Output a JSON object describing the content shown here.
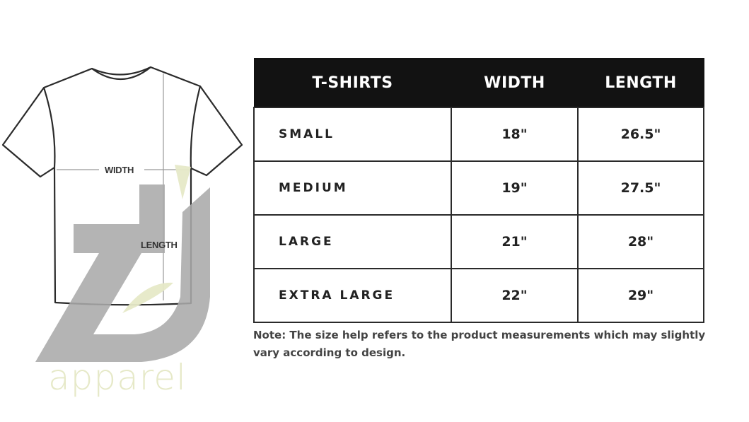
{
  "diagram": {
    "width_label": "WIDTH",
    "length_label": "LENGTH"
  },
  "logo": {
    "text": "apparel",
    "mark": "ZJ",
    "colors": {
      "mark": "#a9a9a9",
      "accent": "#e6e9c8"
    }
  },
  "table": {
    "headers": [
      "T-SHIRTS",
      "WIDTH",
      "LENGTH"
    ],
    "rows": [
      {
        "size": "SMALL",
        "width": "18\"",
        "length": "26.5\""
      },
      {
        "size": "MEDIUM",
        "width": "19\"",
        "length": "27.5\""
      },
      {
        "size": "LARGE",
        "width": "21\"",
        "length": "28\""
      },
      {
        "size": "EXTRA LARGE",
        "width": "22\"",
        "length": "29\""
      }
    ]
  },
  "note": "Note: The size help refers to the product measurements which may slightly vary according to design."
}
